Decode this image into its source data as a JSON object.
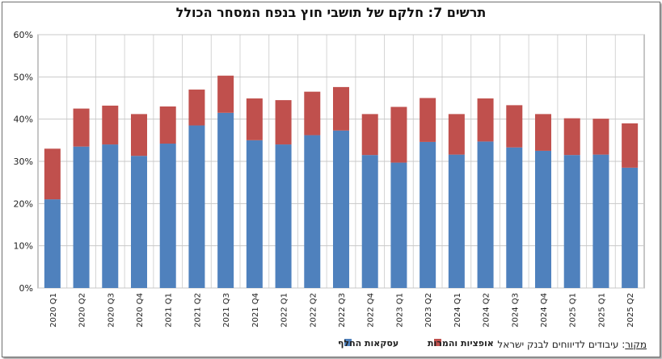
{
  "chart_data": {
    "type": "bar",
    "stacked": true,
    "title": "תרשים 7: חלקם של תושבי חוץ בנפח המסחר הכולל",
    "categories": [
      "2020 Q1",
      "2020 Q2",
      "2020 Q3",
      "2020 Q4",
      "2021 Q1",
      "2021 Q2",
      "2021 Q3",
      "2021 Q4",
      "2022 Q1",
      "2022 Q2",
      "2022 Q3",
      "2022 Q4",
      "2023 Q1",
      "2023 Q2",
      "2024 Q1",
      "2024 Q2",
      "2024 Q3",
      "2024 Q4",
      "2025 Q1",
      "2025 Q1",
      "2025 Q2"
    ],
    "series": [
      {
        "name": "עסקאות החלף",
        "color": "#4f81bd",
        "values": [
          21,
          33.5,
          34,
          31.3,
          34.2,
          38.5,
          41.5,
          35,
          34,
          36.2,
          37.3,
          31.5,
          29.7,
          34.6,
          31.6,
          34.7,
          33.3,
          32.5,
          31.5,
          31.6,
          28.5
        ]
      },
      {
        "name": "אופציות והמרות",
        "color": "#c0504d",
        "values": [
          12,
          9,
          9.2,
          9.9,
          8.8,
          8.5,
          8.8,
          9.9,
          10.5,
          10.3,
          10.3,
          9.7,
          13.2,
          10.4,
          9.6,
          10.2,
          10,
          8.7,
          8.7,
          8.5,
          10.5
        ]
      }
    ],
    "yticks": [
      "0%",
      "10%",
      "20%",
      "30%",
      "40%",
      "50%",
      "60%"
    ],
    "ylim": [
      0,
      60
    ],
    "grid": true,
    "legend": "bottom"
  },
  "source": {
    "label": "מקור",
    "text": ": עיבודים לדיווחים לבנק ישראל"
  }
}
